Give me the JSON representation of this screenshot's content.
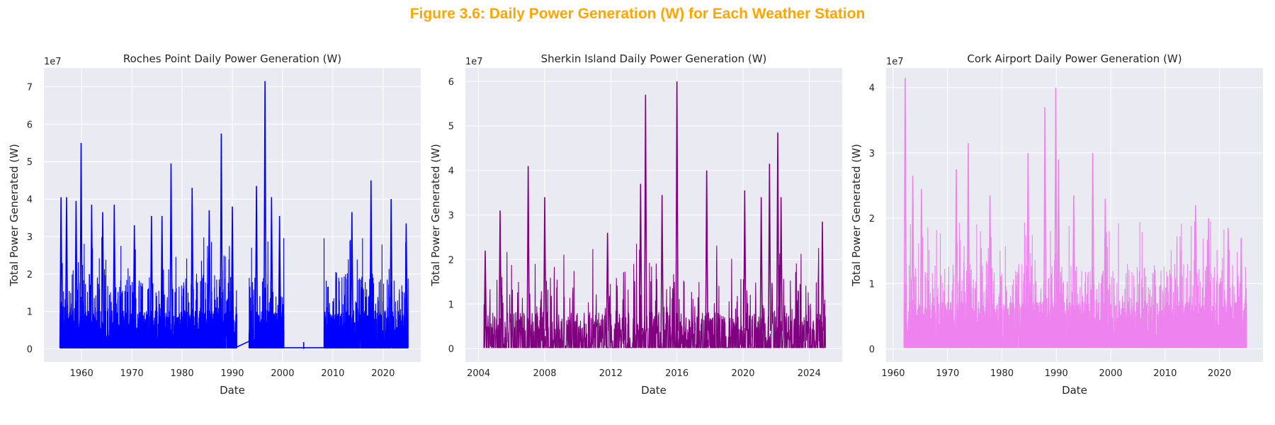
{
  "figure": {
    "title": "Figure 3.6: Daily Power Generation (W) for Each Weather Station",
    "title_color": "#FFA500"
  },
  "style": {
    "plot_background": "#EAEAF2",
    "grid_color": "#FFFFFF"
  },
  "chart_data": [
    {
      "type": "line",
      "title": "Roches Point Daily Power Generation (W)",
      "xlabel": "Date",
      "ylabel": "Total Power Generated (W)",
      "y_offset_label": "1e7",
      "xlim": [
        1952.5,
        2027.5
      ],
      "ylim": [
        -0.35,
        7.5
      ],
      "x_ticks": [
        1960,
        1970,
        1980,
        1990,
        2000,
        2010,
        2020
      ],
      "y_ticks": [
        0,
        1,
        2,
        3,
        4,
        5,
        6,
        7
      ],
      "grid": true,
      "series": [
        {
          "color": "#0000FF",
          "x_start": 1955.7,
          "x_end": 2025.0,
          "gaps": [
            [
              1990.9,
              1993.3
            ],
            [
              2000.3,
              2008.2
            ]
          ],
          "gap_connectors": [
            {
              "x": [
                1990.9,
                1993.3
              ],
              "y": [
                0.05,
                0.2
              ]
            },
            {
              "x": [
                2000.3,
                2008.2
              ],
              "y": [
                0.03,
                0.03
              ]
            }
          ],
          "baseline": 0.02,
          "band_top": 1.0,
          "typical_peak": 2.0,
          "isolated_points": [
            {
              "x": 2004.2,
              "y": 0.18
            }
          ],
          "peaks": [
            {
              "x": 1955.9,
              "y": 4.05
            },
            {
              "x": 1957.0,
              "y": 4.05
            },
            {
              "x": 1958.9,
              "y": 3.95
            },
            {
              "x": 1959.9,
              "y": 5.5
            },
            {
              "x": 1962.0,
              "y": 3.85
            },
            {
              "x": 1964.2,
              "y": 3.65
            },
            {
              "x": 1966.5,
              "y": 3.85
            },
            {
              "x": 1970.5,
              "y": 3.3
            },
            {
              "x": 1973.9,
              "y": 3.55
            },
            {
              "x": 1976.0,
              "y": 3.55
            },
            {
              "x": 1977.8,
              "y": 4.95
            },
            {
              "x": 1982.0,
              "y": 4.3
            },
            {
              "x": 1985.4,
              "y": 3.7
            },
            {
              "x": 1987.8,
              "y": 5.75
            },
            {
              "x": 1990.0,
              "y": 3.8
            },
            {
              "x": 1994.8,
              "y": 4.35
            },
            {
              "x": 1996.5,
              "y": 7.15
            },
            {
              "x": 1997.8,
              "y": 4.05
            },
            {
              "x": 1999.4,
              "y": 3.55
            },
            {
              "x": 2013.8,
              "y": 3.65
            },
            {
              "x": 2017.6,
              "y": 4.5
            },
            {
              "x": 2021.6,
              "y": 4.0
            },
            {
              "x": 2024.6,
              "y": 3.35
            }
          ]
        }
      ]
    },
    {
      "type": "line",
      "title": "Sherkin Island Daily Power Generation (W)",
      "xlabel": "Date",
      "ylabel": "Total Power Generated (W)",
      "y_offset_label": "1e7",
      "xlim": [
        2003.2,
        2026.0
      ],
      "ylim": [
        -0.3,
        6.3
      ],
      "x_ticks": [
        2004,
        2008,
        2012,
        2016,
        2020,
        2024
      ],
      "y_ticks": [
        0,
        1,
        2,
        3,
        4,
        5,
        6
      ],
      "grid": true,
      "series": [
        {
          "color": "#800080",
          "x_start": 2004.3,
          "x_end": 2025.0,
          "gaps": [],
          "gap_connectors": [],
          "baseline": 0.02,
          "band_top": 0.8,
          "typical_peak": 1.6,
          "isolated_points": [],
          "peaks": [
            {
              "x": 2004.4,
              "y": 2.2
            },
            {
              "x": 2005.3,
              "y": 3.1
            },
            {
              "x": 2007.0,
              "y": 4.1
            },
            {
              "x": 2008.0,
              "y": 3.4
            },
            {
              "x": 2011.8,
              "y": 2.6
            },
            {
              "x": 2013.8,
              "y": 3.7
            },
            {
              "x": 2014.1,
              "y": 5.7
            },
            {
              "x": 2015.1,
              "y": 3.45
            },
            {
              "x": 2016.0,
              "y": 6.0
            },
            {
              "x": 2017.8,
              "y": 4.0
            },
            {
              "x": 2020.1,
              "y": 3.55
            },
            {
              "x": 2021.1,
              "y": 3.4
            },
            {
              "x": 2021.6,
              "y": 4.15
            },
            {
              "x": 2022.1,
              "y": 4.85
            },
            {
              "x": 2022.3,
              "y": 3.4
            },
            {
              "x": 2024.8,
              "y": 2.85
            }
          ]
        }
      ]
    },
    {
      "type": "line",
      "title": "Cork Airport Daily Power Generation (W)",
      "xlabel": "Date",
      "ylabel": "Total Power Generated (W)",
      "y_offset_label": "1e7",
      "xlim": [
        1958.7,
        2028.0
      ],
      "ylim": [
        -0.2,
        4.3
      ],
      "x_ticks": [
        1960,
        1970,
        1980,
        1990,
        2000,
        2010,
        2020
      ],
      "y_ticks": [
        0,
        1,
        2,
        3,
        4
      ],
      "grid": true,
      "series": [
        {
          "color": "#EE82EE",
          "x_start": 1962.0,
          "x_end": 2025.0,
          "gaps": [],
          "gap_connectors": [],
          "baseline": 0.02,
          "band_top": 0.7,
          "typical_peak": 1.3,
          "isolated_points": [],
          "peaks": [
            {
              "x": 1962.2,
              "y": 4.15
            },
            {
              "x": 1963.6,
              "y": 2.65
            },
            {
              "x": 1965.2,
              "y": 2.45
            },
            {
              "x": 1971.6,
              "y": 2.75
            },
            {
              "x": 1973.8,
              "y": 3.15
            },
            {
              "x": 1977.8,
              "y": 2.35
            },
            {
              "x": 1984.8,
              "y": 3.0
            },
            {
              "x": 1987.9,
              "y": 3.7
            },
            {
              "x": 1989.9,
              "y": 4.0
            },
            {
              "x": 1990.4,
              "y": 2.9
            },
            {
              "x": 1993.2,
              "y": 2.35
            },
            {
              "x": 1996.7,
              "y": 3.0
            },
            {
              "x": 1999.0,
              "y": 2.3
            },
            {
              "x": 2015.6,
              "y": 2.2
            },
            {
              "x": 2018.0,
              "y": 2.0
            },
            {
              "x": 2021.6,
              "y": 1.85
            },
            {
              "x": 2024.0,
              "y": 1.7
            }
          ]
        }
      ]
    }
  ]
}
